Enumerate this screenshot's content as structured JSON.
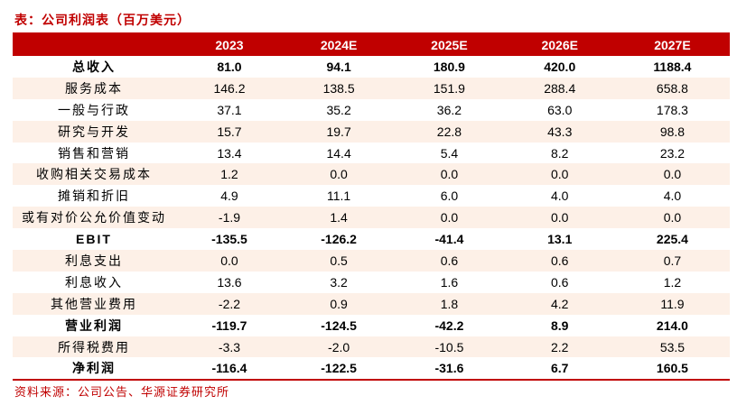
{
  "title": "表：公司利润表（百万美元）",
  "table": {
    "header": [
      "",
      "2023",
      "2024E",
      "2025E",
      "2026E",
      "2027E"
    ],
    "rows": [
      [
        "总收入",
        "81.0",
        "94.1",
        "180.9",
        "420.0",
        "1188.4"
      ],
      [
        "服务成本",
        "146.2",
        "138.5",
        "151.9",
        "288.4",
        "658.8"
      ],
      [
        "一般与行政",
        "37.1",
        "35.2",
        "36.2",
        "63.0",
        "178.3"
      ],
      [
        "研究与开发",
        "15.7",
        "19.7",
        "22.8",
        "43.3",
        "98.8"
      ],
      [
        "销售和营销",
        "13.4",
        "14.4",
        "5.4",
        "8.2",
        "23.2"
      ],
      [
        "收购相关交易成本",
        "1.2",
        "0.0",
        "0.0",
        "0.0",
        "0.0"
      ],
      [
        "摊销和折旧",
        "4.9",
        "11.1",
        "6.0",
        "4.0",
        "4.0"
      ],
      [
        "或有对价公允价值变动",
        "-1.9",
        "1.4",
        "0.0",
        "0.0",
        "0.0"
      ],
      [
        "EBIT",
        "-135.5",
        "-126.2",
        "-41.4",
        "13.1",
        "225.4"
      ],
      [
        "利息支出",
        "0.0",
        "0.5",
        "0.6",
        "0.6",
        "0.7"
      ],
      [
        "利息收入",
        "13.6",
        "3.2",
        "1.6",
        "0.6",
        "1.2"
      ],
      [
        "其他营业费用",
        "-2.2",
        "0.9",
        "1.8",
        "4.2",
        "11.9"
      ],
      [
        "营业利润",
        "-119.7",
        "-124.5",
        "-42.2",
        "8.9",
        "214.0"
      ],
      [
        "所得税费用",
        "-3.3",
        "-2.0",
        "-10.5",
        "2.2",
        "53.5"
      ],
      [
        "净利润",
        "-116.4",
        "-122.5",
        "-31.6",
        "6.7",
        "160.5"
      ]
    ]
  },
  "source": "资料来源：公司公告、华源证券研究所"
}
